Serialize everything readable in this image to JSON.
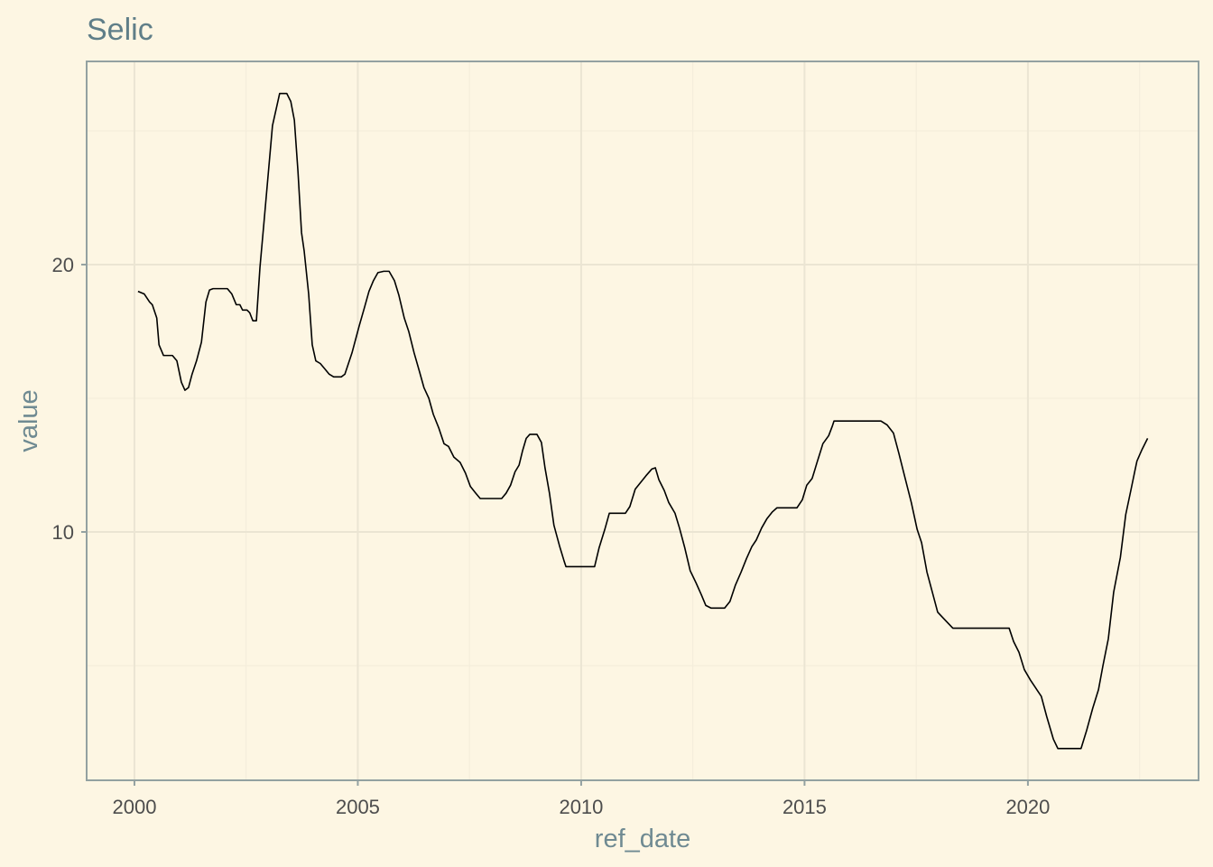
{
  "chart_data": {
    "type": "line",
    "title": "Selic",
    "x_label": "ref_date",
    "y_label": "value",
    "color": "#000000",
    "x": [
      2000.08,
      2000.22,
      2000.34,
      2000.4,
      2000.5,
      2000.55,
      2000.65,
      2000.75,
      2000.85,
      2000.95,
      2001.05,
      2001.13,
      2001.21,
      2001.29,
      2001.39,
      2001.5,
      2001.6,
      2001.68,
      2001.76,
      2002.08,
      2002.18,
      2002.28,
      2002.36,
      2002.42,
      2002.52,
      2002.58,
      2002.65,
      2002.73,
      2002.81,
      2002.89,
      2003.09,
      2003.17,
      2003.25,
      2003.41,
      2003.5,
      2003.58,
      2003.66,
      2003.74,
      2003.8,
      2003.9,
      2003.98,
      2004.06,
      2004.16,
      2004.26,
      2004.36,
      2004.46,
      2004.63,
      2004.71,
      2004.79,
      2004.87,
      2004.95,
      2005.03,
      2005.15,
      2005.25,
      2005.35,
      2005.45,
      2005.58,
      2005.7,
      2005.82,
      2005.92,
      2006.04,
      2006.14,
      2006.26,
      2006.38,
      2006.48,
      2006.59,
      2006.69,
      2006.81,
      2006.93,
      2007.03,
      2007.15,
      2007.29,
      2007.41,
      2007.52,
      2007.64,
      2007.74,
      2008.22,
      2008.32,
      2008.42,
      2008.52,
      2008.61,
      2008.69,
      2008.77,
      2008.85,
      2009.01,
      2009.11,
      2009.19,
      2009.29,
      2009.39,
      2009.52,
      2009.62,
      2009.66,
      2010.3,
      2010.4,
      2010.53,
      2010.63,
      2010.99,
      2011.09,
      2011.21,
      2011.33,
      2011.45,
      2011.58,
      2011.66,
      2011.74,
      2011.86,
      2011.96,
      2012.1,
      2012.2,
      2012.32,
      2012.44,
      2012.57,
      2012.69,
      2012.79,
      2012.91,
      2013.21,
      2013.33,
      2013.45,
      2013.58,
      2013.7,
      2013.82,
      2013.92,
      2014.04,
      2014.16,
      2014.28,
      2014.38,
      2014.83,
      2014.95,
      2015.05,
      2015.17,
      2015.29,
      2015.41,
      2015.54,
      2015.62,
      2015.66,
      2016.71,
      2016.85,
      2016.99,
      2017.11,
      2017.23,
      2017.39,
      2017.52,
      2017.62,
      2017.74,
      2017.86,
      2017.98,
      2018.12,
      2018.32,
      2019.58,
      2019.68,
      2019.8,
      2019.92,
      2020.06,
      2020.2,
      2020.3,
      2020.42,
      2020.57,
      2020.67,
      2021.19,
      2021.31,
      2021.45,
      2021.58,
      2021.68,
      2021.8,
      2021.92,
      2022.07,
      2022.19,
      2022.31,
      2022.44,
      2022.56,
      2022.68
    ],
    "values": [
      19.0,
      18.9,
      18.6,
      18.5,
      18.0,
      17.0,
      16.6,
      16.6,
      16.6,
      16.4,
      15.6,
      15.3,
      15.4,
      15.9,
      16.4,
      17.1,
      18.6,
      19.05,
      19.1,
      19.1,
      18.9,
      18.5,
      18.5,
      18.3,
      18.3,
      18.2,
      17.9,
      17.9,
      19.9,
      21.4,
      25.2,
      25.8,
      26.4,
      26.4,
      26.1,
      25.4,
      23.5,
      21.2,
      20.5,
      18.9,
      17.0,
      16.4,
      16.3,
      16.1,
      15.9,
      15.8,
      15.8,
      15.9,
      16.3,
      16.7,
      17.2,
      17.7,
      18.4,
      19.0,
      19.4,
      19.7,
      19.75,
      19.75,
      19.4,
      18.85,
      18.0,
      17.5,
      16.7,
      16.0,
      15.4,
      15.0,
      14.4,
      13.9,
      13.3,
      13.2,
      12.8,
      12.6,
      12.2,
      11.7,
      11.45,
      11.25,
      11.25,
      11.45,
      11.75,
      12.25,
      12.5,
      13.05,
      13.5,
      13.65,
      13.65,
      13.35,
      12.4,
      11.45,
      10.25,
      9.45,
      8.9,
      8.7,
      8.7,
      9.4,
      10.1,
      10.7,
      10.7,
      10.95,
      11.6,
      11.85,
      12.1,
      12.35,
      12.4,
      11.95,
      11.55,
      11.1,
      10.7,
      10.15,
      9.4,
      8.55,
      8.1,
      7.65,
      7.25,
      7.15,
      7.15,
      7.4,
      8.0,
      8.5,
      9.0,
      9.45,
      9.7,
      10.15,
      10.5,
      10.75,
      10.9,
      10.9,
      11.2,
      11.75,
      12.0,
      12.65,
      13.3,
      13.6,
      13.95,
      14.15,
      14.15,
      14.0,
      13.7,
      12.95,
      12.15,
      11.1,
      10.1,
      9.6,
      8.5,
      7.75,
      7.0,
      6.75,
      6.4,
      6.4,
      5.9,
      5.5,
      4.85,
      4.45,
      4.1,
      3.85,
      3.1,
      2.25,
      1.9,
      1.9,
      2.55,
      3.4,
      4.1,
      5.0,
      6.0,
      7.75,
      9.05,
      10.65,
      11.6,
      12.65,
      13.1,
      13.5
    ],
    "xlim": [
      1998.93,
      2023.82
    ],
    "ylim": [
      0.71,
      27.6
    ],
    "xticks": [
      2000,
      2005,
      2010,
      2015,
      2020
    ],
    "yticks": [
      10,
      20
    ],
    "x_minor_grid": [
      2002.5,
      2007.5,
      2012.5,
      2017.5,
      2022.5
    ],
    "y_minor_grid": [
      5,
      15,
      25
    ],
    "grid": true
  }
}
